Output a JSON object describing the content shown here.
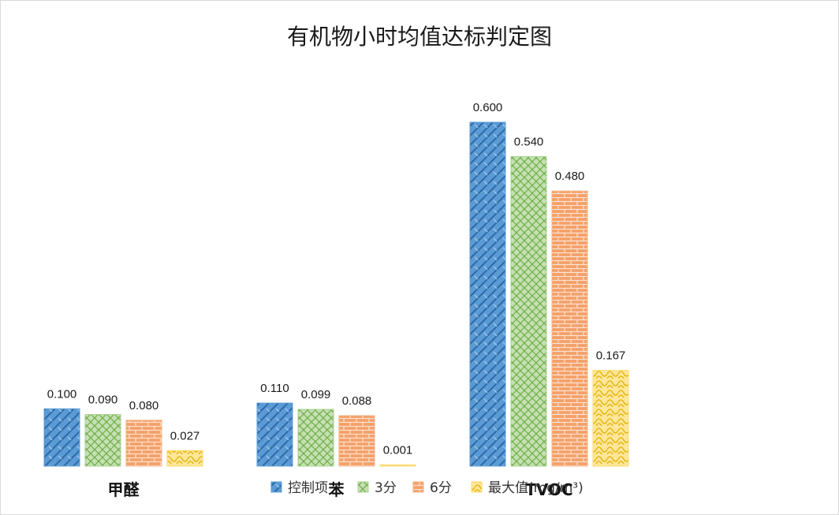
{
  "chart_data": {
    "type": "bar",
    "title": "有机物小时均值达标判定图",
    "categories": [
      "甲醛",
      "苯",
      "TVOC"
    ],
    "series": [
      {
        "name": "控制项",
        "values": [
          0.1,
          0.11,
          0.6
        ],
        "labels": [
          "0.100",
          "0.110",
          "0.600"
        ],
        "color": "#5b9bd5",
        "pattern": "weave"
      },
      {
        "name": "3分",
        "values": [
          0.09,
          0.099,
          0.54
        ],
        "labels": [
          "0.090",
          "0.099",
          "0.540"
        ],
        "color": "#a9d18e",
        "pattern": "diamond-grid"
      },
      {
        "name": "6分",
        "values": [
          0.08,
          0.088,
          0.48
        ],
        "labels": [
          "0.080",
          "0.088",
          "0.480"
        ],
        "color": "#f4b183",
        "pattern": "brick"
      },
      {
        "name": "最大值(mg/m³)",
        "values": [
          0.027,
          0.001,
          0.167
        ],
        "labels": [
          "0.027",
          "0.001",
          "0.167"
        ],
        "color": "#ffd966",
        "pattern": "wave"
      }
    ],
    "ylim": [
      0,
      0.7
    ],
    "grid": false,
    "legend_position": "bottom"
  }
}
